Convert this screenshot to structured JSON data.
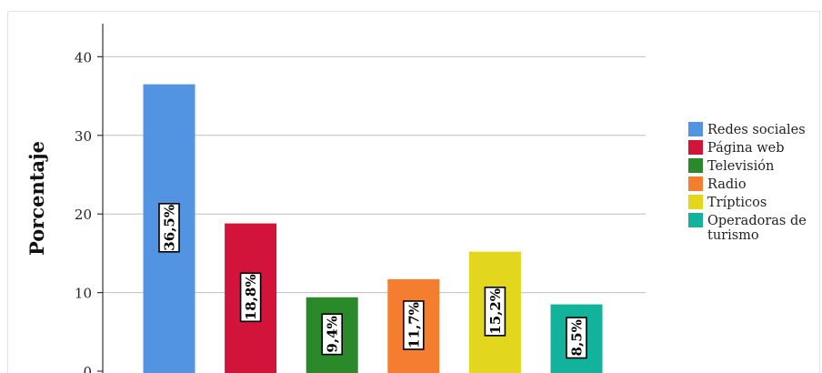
{
  "chart_data": {
    "type": "bar",
    "title": "",
    "xlabel": "",
    "ylabel": "Porcentaje",
    "ylim": [
      0,
      44
    ],
    "yticks": [
      0,
      10,
      20,
      30,
      40
    ],
    "grid": true,
    "legend_position": "right",
    "categories": [
      "Redes sociales",
      "Página web",
      "Televisión",
      "Radio",
      "Trípticos",
      "Operadoras de turismo"
    ],
    "legend_labels": [
      [
        "Redes sociales"
      ],
      [
        "Página web"
      ],
      [
        "Televisión"
      ],
      [
        "Radio"
      ],
      [
        "Trípticos"
      ],
      [
        "Operadoras de",
        "turismo"
      ]
    ],
    "values": [
      36.5,
      18.8,
      9.4,
      11.7,
      15.2,
      8.5
    ],
    "data_labels": [
      "36,5%",
      "18,8%",
      "9,4%",
      "11,7%",
      "15,2%",
      "8,5%"
    ],
    "colors": [
      "#5294e2",
      "#d2143a",
      "#2a8a2a",
      "#f47d30",
      "#e2d71c",
      "#12b29d"
    ]
  }
}
